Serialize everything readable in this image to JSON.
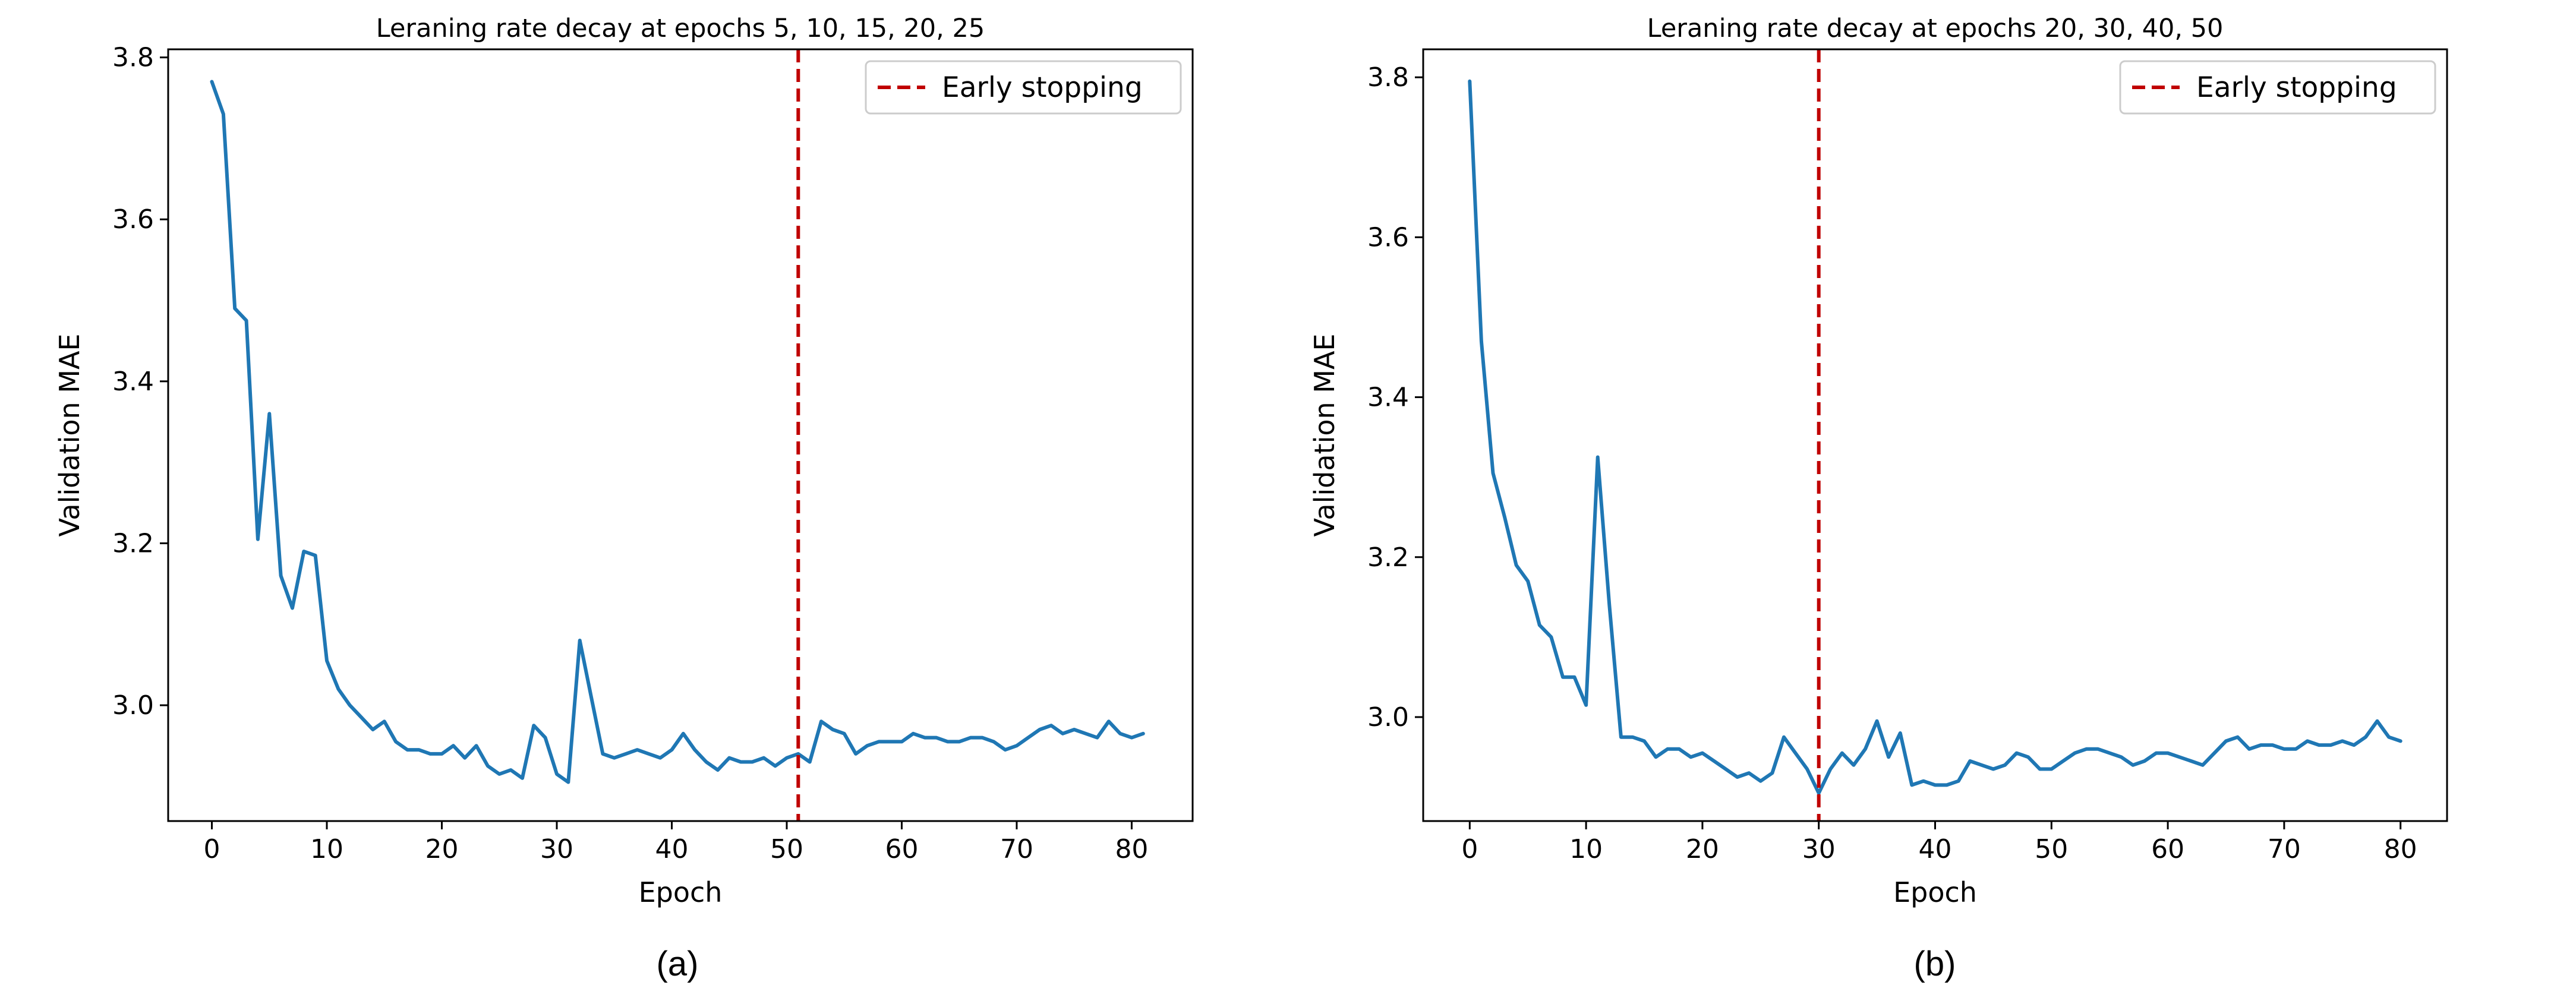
{
  "chart_data": [
    {
      "type": "line",
      "title": "Leraning rate decay at epochs 5, 10, 15, 20, 25",
      "xlabel": "Epoch",
      "ylabel": "Validation MAE",
      "caption": "(a)",
      "xlim": [
        -3.8,
        85.3
      ],
      "ylim": [
        2.857,
        3.81
      ],
      "xticks": [
        0,
        10,
        20,
        30,
        40,
        50,
        60,
        70,
        80
      ],
      "xtick_labels": [
        "0",
        "10",
        "20",
        "30",
        "40",
        "50",
        "60",
        "70",
        "80"
      ],
      "yticks": [
        3.0,
        3.2,
        3.4,
        3.6,
        3.8
      ],
      "ytick_labels": [
        "3.0",
        "3.2",
        "3.4",
        "3.6",
        "3.8"
      ],
      "grid": false,
      "legend": {
        "position": "top-right",
        "entries": [
          "Early stopping"
        ]
      },
      "early_stopping_epoch": 51,
      "line_color": "#1f77b4",
      "stop_color": "#c00000",
      "series": [
        {
          "x": [
            0,
            1,
            2,
            3,
            4,
            5,
            6,
            7,
            8,
            9,
            10,
            11,
            12,
            13,
            14,
            15,
            16,
            17,
            18,
            19,
            20,
            21,
            22,
            23,
            24,
            25,
            26,
            27,
            28,
            29,
            30,
            31,
            32,
            33,
            34,
            35,
            36,
            37,
            38,
            39,
            40,
            41,
            42,
            43,
            44,
            45,
            46,
            47,
            48,
            49,
            50,
            51,
            52,
            53,
            54,
            55,
            56,
            57,
            58,
            59,
            60,
            61,
            62,
            63,
            64,
            65,
            66,
            67,
            68,
            69,
            70,
            71,
            72,
            73,
            74,
            75,
            76,
            77,
            78,
            79,
            80,
            81
          ],
          "values": [
            3.77,
            3.73,
            3.49,
            3.475,
            3.205,
            3.36,
            3.16,
            3.12,
            3.19,
            3.185,
            3.055,
            3.02,
            3.0,
            2.985,
            2.97,
            2.98,
            2.955,
            2.945,
            2.945,
            2.94,
            2.94,
            2.95,
            2.935,
            2.95,
            2.925,
            2.915,
            2.92,
            2.91,
            2.975,
            2.96,
            2.915,
            2.905,
            3.08,
            3.01,
            2.94,
            2.935,
            2.94,
            2.945,
            2.94,
            2.935,
            2.945,
            2.965,
            2.945,
            2.93,
            2.92,
            2.935,
            2.93,
            2.93,
            2.935,
            2.925,
            2.935,
            2.94,
            2.93,
            2.98,
            2.97,
            2.965,
            2.94,
            2.95,
            2.955,
            2.955,
            2.955,
            2.965,
            2.96,
            2.96,
            2.955,
            2.955,
            2.96,
            2.96,
            2.955,
            2.945,
            2.95,
            2.96,
            2.97,
            2.975,
            2.965,
            2.97,
            2.965,
            2.96,
            2.98,
            2.965,
            2.96,
            2.965
          ]
        }
      ]
    },
    {
      "type": "line",
      "title": "Leraning rate decay at epochs 20, 30, 40, 50",
      "xlabel": "Epoch",
      "ylabel": "Validation MAE",
      "caption": "(b)",
      "xlim": [
        -4.0,
        84.0
      ],
      "ylim": [
        2.87,
        3.835
      ],
      "xticks": [
        0,
        10,
        20,
        30,
        40,
        50,
        60,
        70,
        80
      ],
      "xtick_labels": [
        "0",
        "10",
        "20",
        "30",
        "40",
        "50",
        "60",
        "70",
        "80"
      ],
      "yticks": [
        3.0,
        3.2,
        3.4,
        3.6,
        3.8
      ],
      "ytick_labels": [
        "3.0",
        "3.2",
        "3.4",
        "3.6",
        "3.8"
      ],
      "grid": false,
      "legend": {
        "position": "top-right",
        "entries": [
          "Early stopping"
        ]
      },
      "early_stopping_epoch": 30,
      "line_color": "#1f77b4",
      "stop_color": "#c00000",
      "series": [
        {
          "x": [
            0,
            1,
            2,
            3,
            4,
            5,
            6,
            7,
            8,
            9,
            10,
            11,
            12,
            13,
            14,
            15,
            16,
            17,
            18,
            19,
            20,
            21,
            22,
            23,
            24,
            25,
            26,
            27,
            28,
            29,
            30,
            31,
            32,
            33,
            34,
            35,
            36,
            37,
            38,
            39,
            40,
            41,
            42,
            43,
            44,
            45,
            46,
            47,
            48,
            49,
            50,
            51,
            52,
            53,
            54,
            55,
            56,
            57,
            58,
            59,
            60,
            61,
            62,
            63,
            64,
            65,
            66,
            67,
            68,
            69,
            70,
            71,
            72,
            73,
            74,
            75,
            76,
            77,
            78,
            79,
            80
          ],
          "values": [
            3.795,
            3.47,
            3.305,
            3.25,
            3.19,
            3.17,
            3.115,
            3.1,
            3.05,
            3.05,
            3.015,
            3.325,
            3.14,
            2.975,
            2.975,
            2.97,
            2.95,
            2.96,
            2.96,
            2.95,
            2.955,
            2.945,
            2.935,
            2.925,
            2.93,
            2.92,
            2.93,
            2.975,
            2.955,
            2.935,
            2.905,
            2.935,
            2.955,
            2.94,
            2.96,
            2.995,
            2.95,
            2.98,
            2.915,
            2.92,
            2.915,
            2.915,
            2.92,
            2.945,
            2.94,
            2.935,
            2.94,
            2.955,
            2.95,
            2.935,
            2.935,
            2.945,
            2.955,
            2.96,
            2.96,
            2.955,
            2.95,
            2.94,
            2.945,
            2.955,
            2.955,
            2.95,
            2.945,
            2.94,
            2.955,
            2.97,
            2.975,
            2.96,
            2.965,
            2.965,
            2.96,
            2.96,
            2.97,
            2.965,
            2.965,
            2.97,
            2.965,
            2.975,
            2.995,
            2.975,
            2.97
          ]
        }
      ]
    }
  ]
}
